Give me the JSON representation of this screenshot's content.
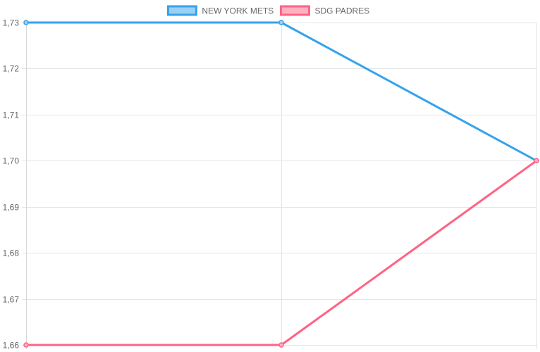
{
  "chart_data": {
    "type": "line",
    "categories": [
      "",
      "",
      ""
    ],
    "y_ticks": [
      "1,73",
      "1,72",
      "1,71",
      "1,70",
      "1,69",
      "1,68",
      "1,67",
      "1,66"
    ],
    "ylim": [
      1.66,
      1.73
    ],
    "grid": true,
    "legend_position": "top-center",
    "series": [
      {
        "name": "NEW YORK METS",
        "values": [
          1.73,
          1.73,
          1.7
        ],
        "color": "#36a2eb",
        "fill": "#9ad0f5"
      },
      {
        "name": "SDG  PADRES",
        "values": [
          1.66,
          1.66,
          1.7
        ],
        "color": "#ff6384",
        "fill": "#ffb1c1"
      }
    ]
  }
}
